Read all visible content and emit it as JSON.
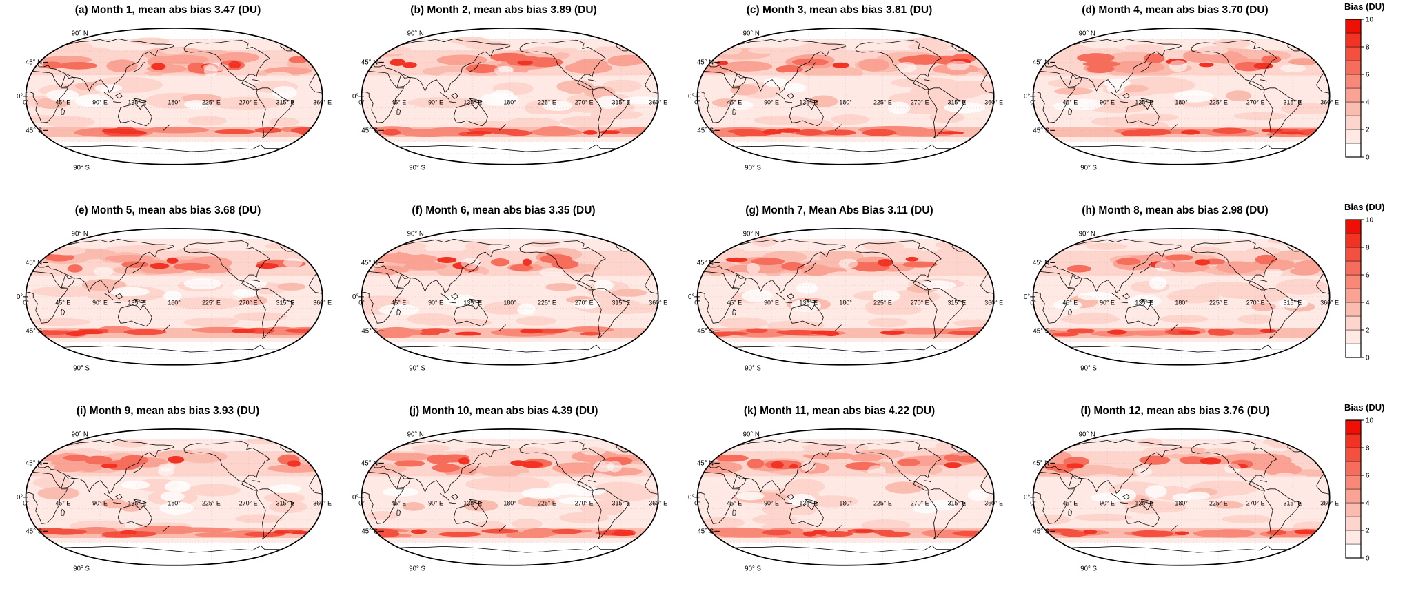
{
  "figure": {
    "lat_labels": [
      "90° N",
      "45° N",
      "0°",
      "45° S",
      "90° S"
    ],
    "lon_labels": [
      "0°",
      "45° E",
      "90° E",
      "135° E",
      "180°",
      "225° E",
      "270° E",
      "315° E",
      "360° E"
    ],
    "colorbar": {
      "label": "Bias (DU)",
      "ticks": [
        0,
        2,
        4,
        6,
        8,
        10
      ],
      "min": 0,
      "max": 10,
      "colors": [
        "#ffffff",
        "#fee9e4",
        "#fdd5cd",
        "#fbbcb0",
        "#faa294",
        "#f88878",
        "#f66d5b",
        "#f4503f",
        "#f23222",
        "#ee1004"
      ]
    },
    "panels": [
      {
        "title": "(a) Month 1, mean abs bias 3.47 (DU)"
      },
      {
        "title": "(b) Month 2, mean abs bias 3.89 (DU)"
      },
      {
        "title": "(c) Month 3, mean abs bias 3.81 (DU)"
      },
      {
        "title": "(d) Month 4, mean abs bias 3.70 (DU)"
      },
      {
        "title": "(e) Month 5, mean abs bias 3.68 (DU)"
      },
      {
        "title": "(f) Month 6, mean abs bias 3.35 (DU)"
      },
      {
        "title": "(g) Month 7, Mean Abs Bias 3.11 (DU)"
      },
      {
        "title": "(h) Month 8, mean abs bias 2.98 (DU)"
      },
      {
        "title": "(i) Month 9, mean abs bias 3.93 (DU)"
      },
      {
        "title": "(j) Month 10, mean abs bias 4.39 (DU)"
      },
      {
        "title": "(k) Month 11, mean abs bias 4.22 (DU)"
      },
      {
        "title": "(l) Month 12, mean abs bias 3.76 (DU)"
      }
    ]
  },
  "chart_data": {
    "type": "heatmap",
    "subtype": "filled-contour world maps, 3x4 panel grid (one per month)",
    "projection": "robinson-like global map, longitude 0-360 deg E",
    "variable": "Bias (DU)",
    "units": "DU",
    "colorbar": {
      "label": "Bias (DU)",
      "range": [
        0,
        10
      ],
      "ticks": [
        0,
        2,
        4,
        6,
        8,
        10
      ],
      "scheme": "white-to-red discrete steps"
    },
    "x_ticks_deg_east": [
      0,
      45,
      90,
      135,
      180,
      225,
      270,
      315,
      360
    ],
    "y_ticks_deg": [
      90,
      45,
      0,
      -45,
      -90
    ],
    "panels": [
      {
        "label": "(a)",
        "month": 1,
        "mean_abs_bias": 3.47
      },
      {
        "label": "(b)",
        "month": 2,
        "mean_abs_bias": 3.89
      },
      {
        "label": "(c)",
        "month": 3,
        "mean_abs_bias": 3.81
      },
      {
        "label": "(d)",
        "month": 4,
        "mean_abs_bias": 3.7
      },
      {
        "label": "(e)",
        "month": 5,
        "mean_abs_bias": 3.68
      },
      {
        "label": "(f)",
        "month": 6,
        "mean_abs_bias": 3.35
      },
      {
        "label": "(g)",
        "month": 7,
        "mean_abs_bias": 3.11
      },
      {
        "label": "(h)",
        "month": 8,
        "mean_abs_bias": 2.98
      },
      {
        "label": "(i)",
        "month": 9,
        "mean_abs_bias": 3.93
      },
      {
        "label": "(j)",
        "month": 10,
        "mean_abs_bias": 4.39
      },
      {
        "label": "(k)",
        "month": 11,
        "mean_abs_bias": 4.22
      },
      {
        "label": "(l)",
        "month": 12,
        "mean_abs_bias": 3.76
      }
    ],
    "pattern_notes": "Largest biases form zonal red bands over northern mid-latitudes (~30-60N) and a narrow intense band near 45-55S; tropics and polar regions show low bias (white to pale pink)."
  }
}
